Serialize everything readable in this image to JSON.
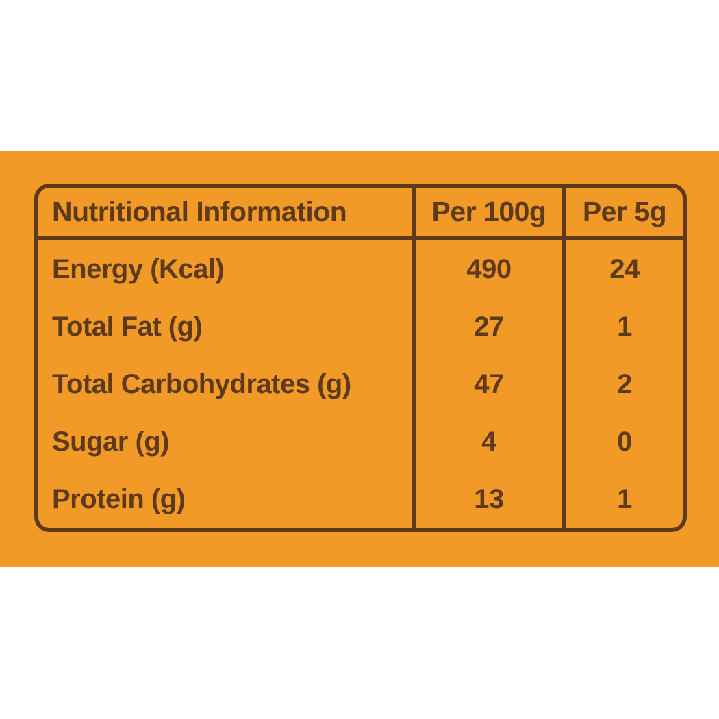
{
  "colors": {
    "panel_orange": "#f19a28",
    "ink_brown": "#5d3a1c",
    "page_white": "#ffffff"
  },
  "table": {
    "headers": [
      "Nutritional Information",
      "Per 100g",
      "Per 5g"
    ],
    "rows": [
      {
        "label": "Energy (Kcal)",
        "per_100g": "490",
        "per_5g": "24"
      },
      {
        "label": "Total Fat (g)",
        "per_100g": "27",
        "per_5g": "1"
      },
      {
        "label": "Total Carbohydrates (g)",
        "per_100g": "47",
        "per_5g": "2"
      },
      {
        "label": "Sugar (g)",
        "per_100g": "4",
        "per_5g": "0"
      },
      {
        "label": "Protein (g)",
        "per_100g": "13",
        "per_5g": "1"
      }
    ]
  }
}
